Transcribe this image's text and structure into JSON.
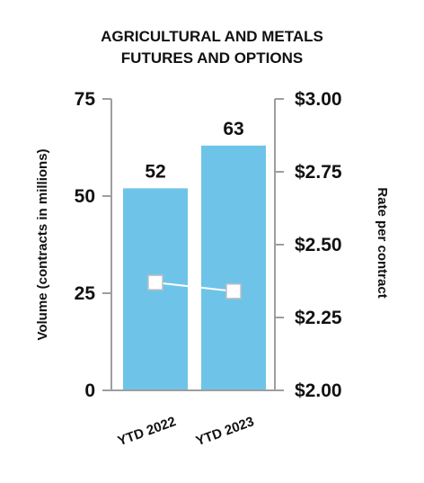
{
  "chart_data": {
    "type": "bar",
    "title_lines": [
      "AGRICULTURAL AND METALS",
      "FUTURES AND OPTIONS"
    ],
    "categories": [
      "YTD 2022",
      "YTD 2023"
    ],
    "series": [
      {
        "axis": "left",
        "mark": "bar",
        "values": [
          52,
          63
        ],
        "value_labels": [
          "52",
          "63"
        ],
        "color": "#6ec4e8"
      },
      {
        "axis": "right",
        "mark": "line",
        "values": [
          2.37,
          2.34
        ],
        "color": "#ffffff",
        "marker_stroke": "#bfbfbf"
      }
    ],
    "y_left": {
      "label": "Volume (contracts in millions)",
      "ylim": [
        0,
        75
      ],
      "ticks": [
        0,
        25,
        50,
        75
      ],
      "tick_labels": [
        "0",
        "25",
        "50",
        "75"
      ]
    },
    "y_right": {
      "label": "Rate per contract",
      "ylim": [
        2.0,
        3.0
      ],
      "ticks": [
        2.0,
        2.25,
        2.5,
        2.75,
        3.0
      ],
      "tick_labels": [
        "$2.00",
        "$2.25",
        "$2.50",
        "$2.75",
        "$3.00"
      ]
    },
    "axis_color": "#9e9e9e",
    "text_color": "#111111",
    "grid": false
  }
}
